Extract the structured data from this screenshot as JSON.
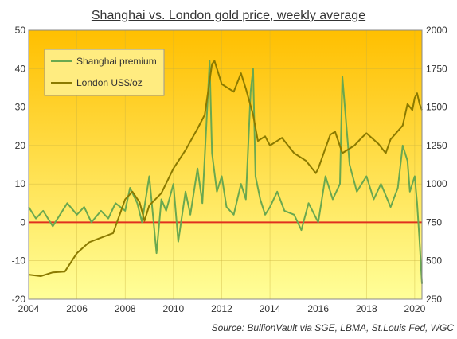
{
  "chart_data": {
    "type": "line",
    "title": "Shanghai vs. London gold price, weekly average",
    "source_label": "Source:",
    "source_text": "BullionVault via SGE, LBMA, St.Louis Fed, WGC",
    "x_ticks": [
      "2004",
      "2006",
      "2008",
      "2010",
      "2012",
      "2014",
      "2016",
      "2018",
      "2020"
    ],
    "xlim": [
      2004,
      2020.3
    ],
    "y_left": {
      "ticks": [
        "-20",
        "-10",
        "0",
        "10",
        "20",
        "30",
        "40",
        "50"
      ],
      "lim": [
        -20,
        50
      ]
    },
    "y_right": {
      "ticks": [
        "250",
        "500",
        "750",
        "1000",
        "1250",
        "1500",
        "1750",
        "2000"
      ],
      "lim": [
        250,
        2000
      ]
    },
    "legend": {
      "placement": "top-left",
      "entries": [
        "Shanghai premium",
        "London US$/oz"
      ]
    },
    "zero_line_color": "#e0301e",
    "background_gradient": [
      "#ffbf00",
      "#ffff99"
    ],
    "series": [
      {
        "name": "Shanghai premium",
        "axis": "left",
        "color": "#6aa84f",
        "x": [
          2004.0,
          2004.3,
          2004.6,
          2005.0,
          2005.3,
          2005.6,
          2006.0,
          2006.3,
          2006.6,
          2007.0,
          2007.3,
          2007.6,
          2008.0,
          2008.2,
          2008.5,
          2008.7,
          2009.0,
          2009.3,
          2009.5,
          2009.7,
          2010.0,
          2010.2,
          2010.5,
          2010.7,
          2011.0,
          2011.2,
          2011.5,
          2011.6,
          2011.8,
          2012.0,
          2012.2,
          2012.5,
          2012.8,
          2013.0,
          2013.2,
          2013.3,
          2013.4,
          2013.6,
          2013.8,
          2014.0,
          2014.3,
          2014.6,
          2015.0,
          2015.3,
          2015.6,
          2016.0,
          2016.3,
          2016.6,
          2016.9,
          2017.0,
          2017.3,
          2017.6,
          2018.0,
          2018.3,
          2018.6,
          2019.0,
          2019.3,
          2019.5,
          2019.7,
          2019.8,
          2020.0,
          2020.1,
          2020.2,
          2020.3
        ],
        "values": [
          4,
          1,
          3,
          -1,
          2,
          5,
          2,
          4,
          0,
          3,
          1,
          5,
          3,
          9,
          5,
          0,
          12,
          -8,
          6,
          3,
          10,
          -5,
          8,
          2,
          14,
          5,
          42,
          18,
          8,
          12,
          4,
          2,
          10,
          6,
          34,
          40,
          12,
          6,
          2,
          4,
          8,
          3,
          2,
          -2,
          5,
          0,
          12,
          6,
          10,
          38,
          15,
          8,
          12,
          6,
          10,
          4,
          9,
          20,
          16,
          8,
          12,
          5,
          -5,
          -16
        ]
      },
      {
        "name": "London US$/oz",
        "axis": "right",
        "color": "#8b7a00",
        "x": [
          2004.0,
          2004.5,
          2005.0,
          2005.5,
          2006.0,
          2006.5,
          2007.0,
          2007.5,
          2008.0,
          2008.3,
          2008.6,
          2008.8,
          2009.0,
          2009.5,
          2010.0,
          2010.5,
          2011.0,
          2011.3,
          2011.6,
          2011.7,
          2012.0,
          2012.5,
          2012.8,
          2013.0,
          2013.3,
          2013.5,
          2013.8,
          2014.0,
          2014.5,
          2015.0,
          2015.5,
          2015.9,
          2016.0,
          2016.5,
          2016.7,
          2017.0,
          2017.5,
          2017.8,
          2018.0,
          2018.5,
          2018.8,
          2019.0,
          2019.5,
          2019.7,
          2019.9,
          2020.0,
          2020.1,
          2020.2,
          2020.3
        ],
        "values": [
          410,
          400,
          425,
          430,
          550,
          620,
          650,
          680,
          900,
          950,
          880,
          760,
          860,
          940,
          1100,
          1220,
          1360,
          1450,
          1780,
          1800,
          1650,
          1600,
          1720,
          1620,
          1450,
          1280,
          1310,
          1250,
          1300,
          1200,
          1150,
          1070,
          1100,
          1320,
          1340,
          1200,
          1250,
          1300,
          1330,
          1260,
          1200,
          1290,
          1380,
          1520,
          1480,
          1560,
          1590,
          1520,
          1480
        ]
      }
    ]
  }
}
